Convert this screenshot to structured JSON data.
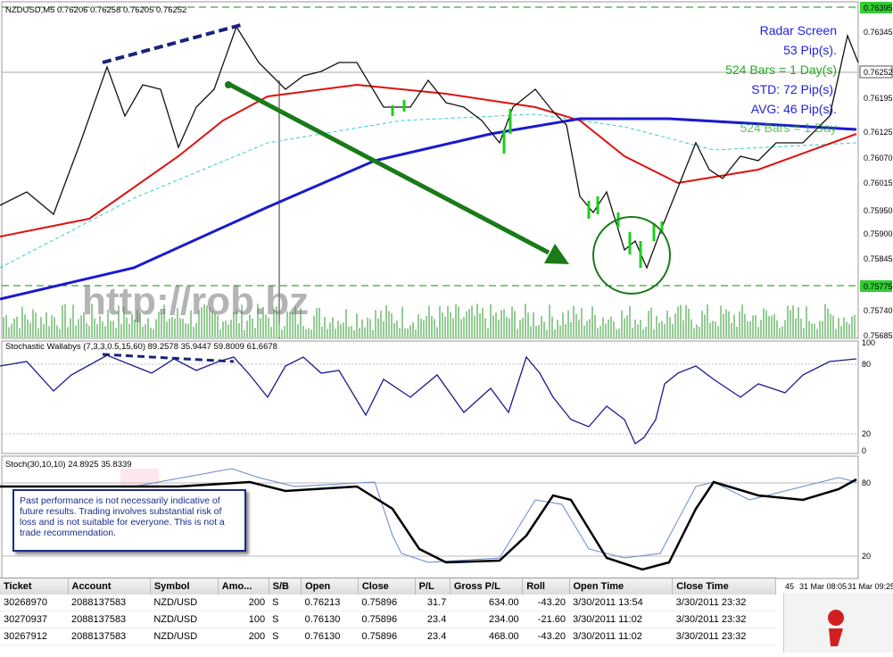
{
  "main_window": {
    "header": "NZDUSD,M5  0.76206 0.76258 0.76205 0.76252",
    "price_axis": [
      "0.76395",
      "0.76345",
      "0.76252",
      "0.76195",
      "0.76125",
      "0.76070",
      "0.76015",
      "0.75950",
      "0.75900",
      "0.75845",
      "0.75775",
      "0.75740",
      "0.75685"
    ]
  },
  "watermark": "http://rob.bz",
  "radar": {
    "title": "Radar Screen",
    "pips": "53 Pip(s).",
    "bars": "524 Bars = 1 Day(s)",
    "std": "STD: 72 Pip(s).",
    "avg": "AVG: 46 Pip(s).",
    "bars_faded": "524 Bars = 1 Day"
  },
  "indicator1": {
    "label": "Stochastic Wallabys (7,3,3,0.5,15,60) 89.2578 35.9447 59.8009 61.6678",
    "levels": [
      "100",
      "80",
      "20",
      "0"
    ]
  },
  "indicator2": {
    "label": "Stoch(30,10,10) 24.8925 35.8339",
    "levels": [
      "80",
      "20"
    ]
  },
  "time_axis": [
    "45",
    "31 Mar 08:05",
    "31 Mar 09:25"
  ],
  "disclaimer": "Past performance is not necessarily indicative of future results. Trading involves substantial risk of loss and is not suitable for everyone. This is not a trade recommendation.",
  "table": {
    "columns": [
      "Ticket",
      "Account",
      "Symbol",
      "Amo...",
      "S/B",
      "Open",
      "Close",
      "P/L",
      "Gross P/L",
      "Roll",
      "Open Time",
      "Close Time"
    ],
    "rows": [
      [
        "30268970",
        "2088137583",
        "NZD/USD",
        "200",
        "S",
        "0.76213",
        "0.75896",
        "31.7",
        "634.00",
        "-43.20",
        "3/30/2011 13:54",
        "3/30/2011 23:32"
      ],
      [
        "30270937",
        "2088137583",
        "NZD/USD",
        "100",
        "S",
        "0.76130",
        "0.75896",
        "23.4",
        "234.00",
        "-21.60",
        "3/30/2011 11:02",
        "3/30/2011 23:32"
      ],
      [
        "30267912",
        "2088137583",
        "NZD/USD",
        "200",
        "S",
        "0.76130",
        "0.75896",
        "23.4",
        "468.00",
        "-43.20",
        "3/30/2011 11:02",
        "3/30/2011 23:32"
      ]
    ]
  }
}
